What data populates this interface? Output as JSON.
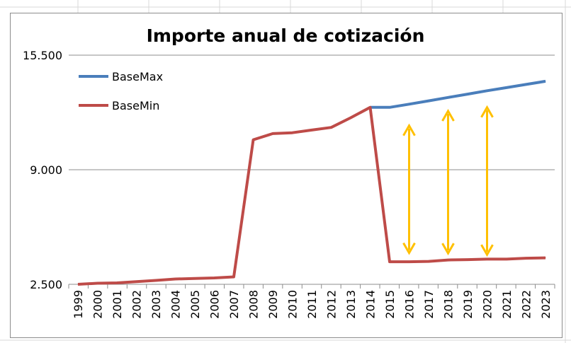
{
  "chart_data": {
    "type": "line",
    "title": "Importe anual de cotización",
    "xlabel": "",
    "ylabel": "",
    "ylim": [
      2500,
      15500
    ],
    "y_ticks": [
      {
        "value": 15500,
        "label": "15.500"
      },
      {
        "value": 9000,
        "label": "9.000"
      },
      {
        "value": 2500,
        "label": "2.500"
      }
    ],
    "grid": true,
    "legend_position": "top-left",
    "categories": [
      "1999",
      "2000",
      "2001",
      "2002",
      "2003",
      "2004",
      "2005",
      "2006",
      "2007",
      "2008",
      "2009",
      "2010",
      "2011",
      "2012",
      "2013",
      "2014",
      "2015",
      "2016",
      "2017",
      "2018",
      "2019",
      "2020",
      "2021",
      "2022",
      "2023"
    ],
    "series": [
      {
        "name": "BaseMax",
        "color": "#4a7ebb",
        "values": [
          null,
          null,
          null,
          null,
          null,
          null,
          null,
          null,
          null,
          null,
          null,
          null,
          null,
          null,
          null,
          12540,
          12540,
          12720,
          12910,
          13100,
          13290,
          13480,
          13660,
          13840,
          14020
        ]
      },
      {
        "name": "BaseMin",
        "color": "#be4b48",
        "values": [
          2500,
          2560,
          2580,
          2650,
          2720,
          2800,
          2830,
          2860,
          2920,
          10700,
          11050,
          11100,
          11250,
          11400,
          11950,
          12540,
          3780,
          3780,
          3800,
          3880,
          3900,
          3930,
          3930,
          3980,
          4000
        ]
      }
    ],
    "annotations": [
      {
        "type": "double-arrow",
        "color": "#ffc000",
        "x_category": "2016",
        "y_from": 11500,
        "y_to": 4280
      },
      {
        "type": "double-arrow",
        "color": "#ffc000",
        "x_category": "2018",
        "y_from": 12330,
        "y_to": 4260
      },
      {
        "type": "double-arrow",
        "color": "#ffc000",
        "x_category": "2020",
        "y_from": 12540,
        "y_to": 4180
      }
    ]
  }
}
